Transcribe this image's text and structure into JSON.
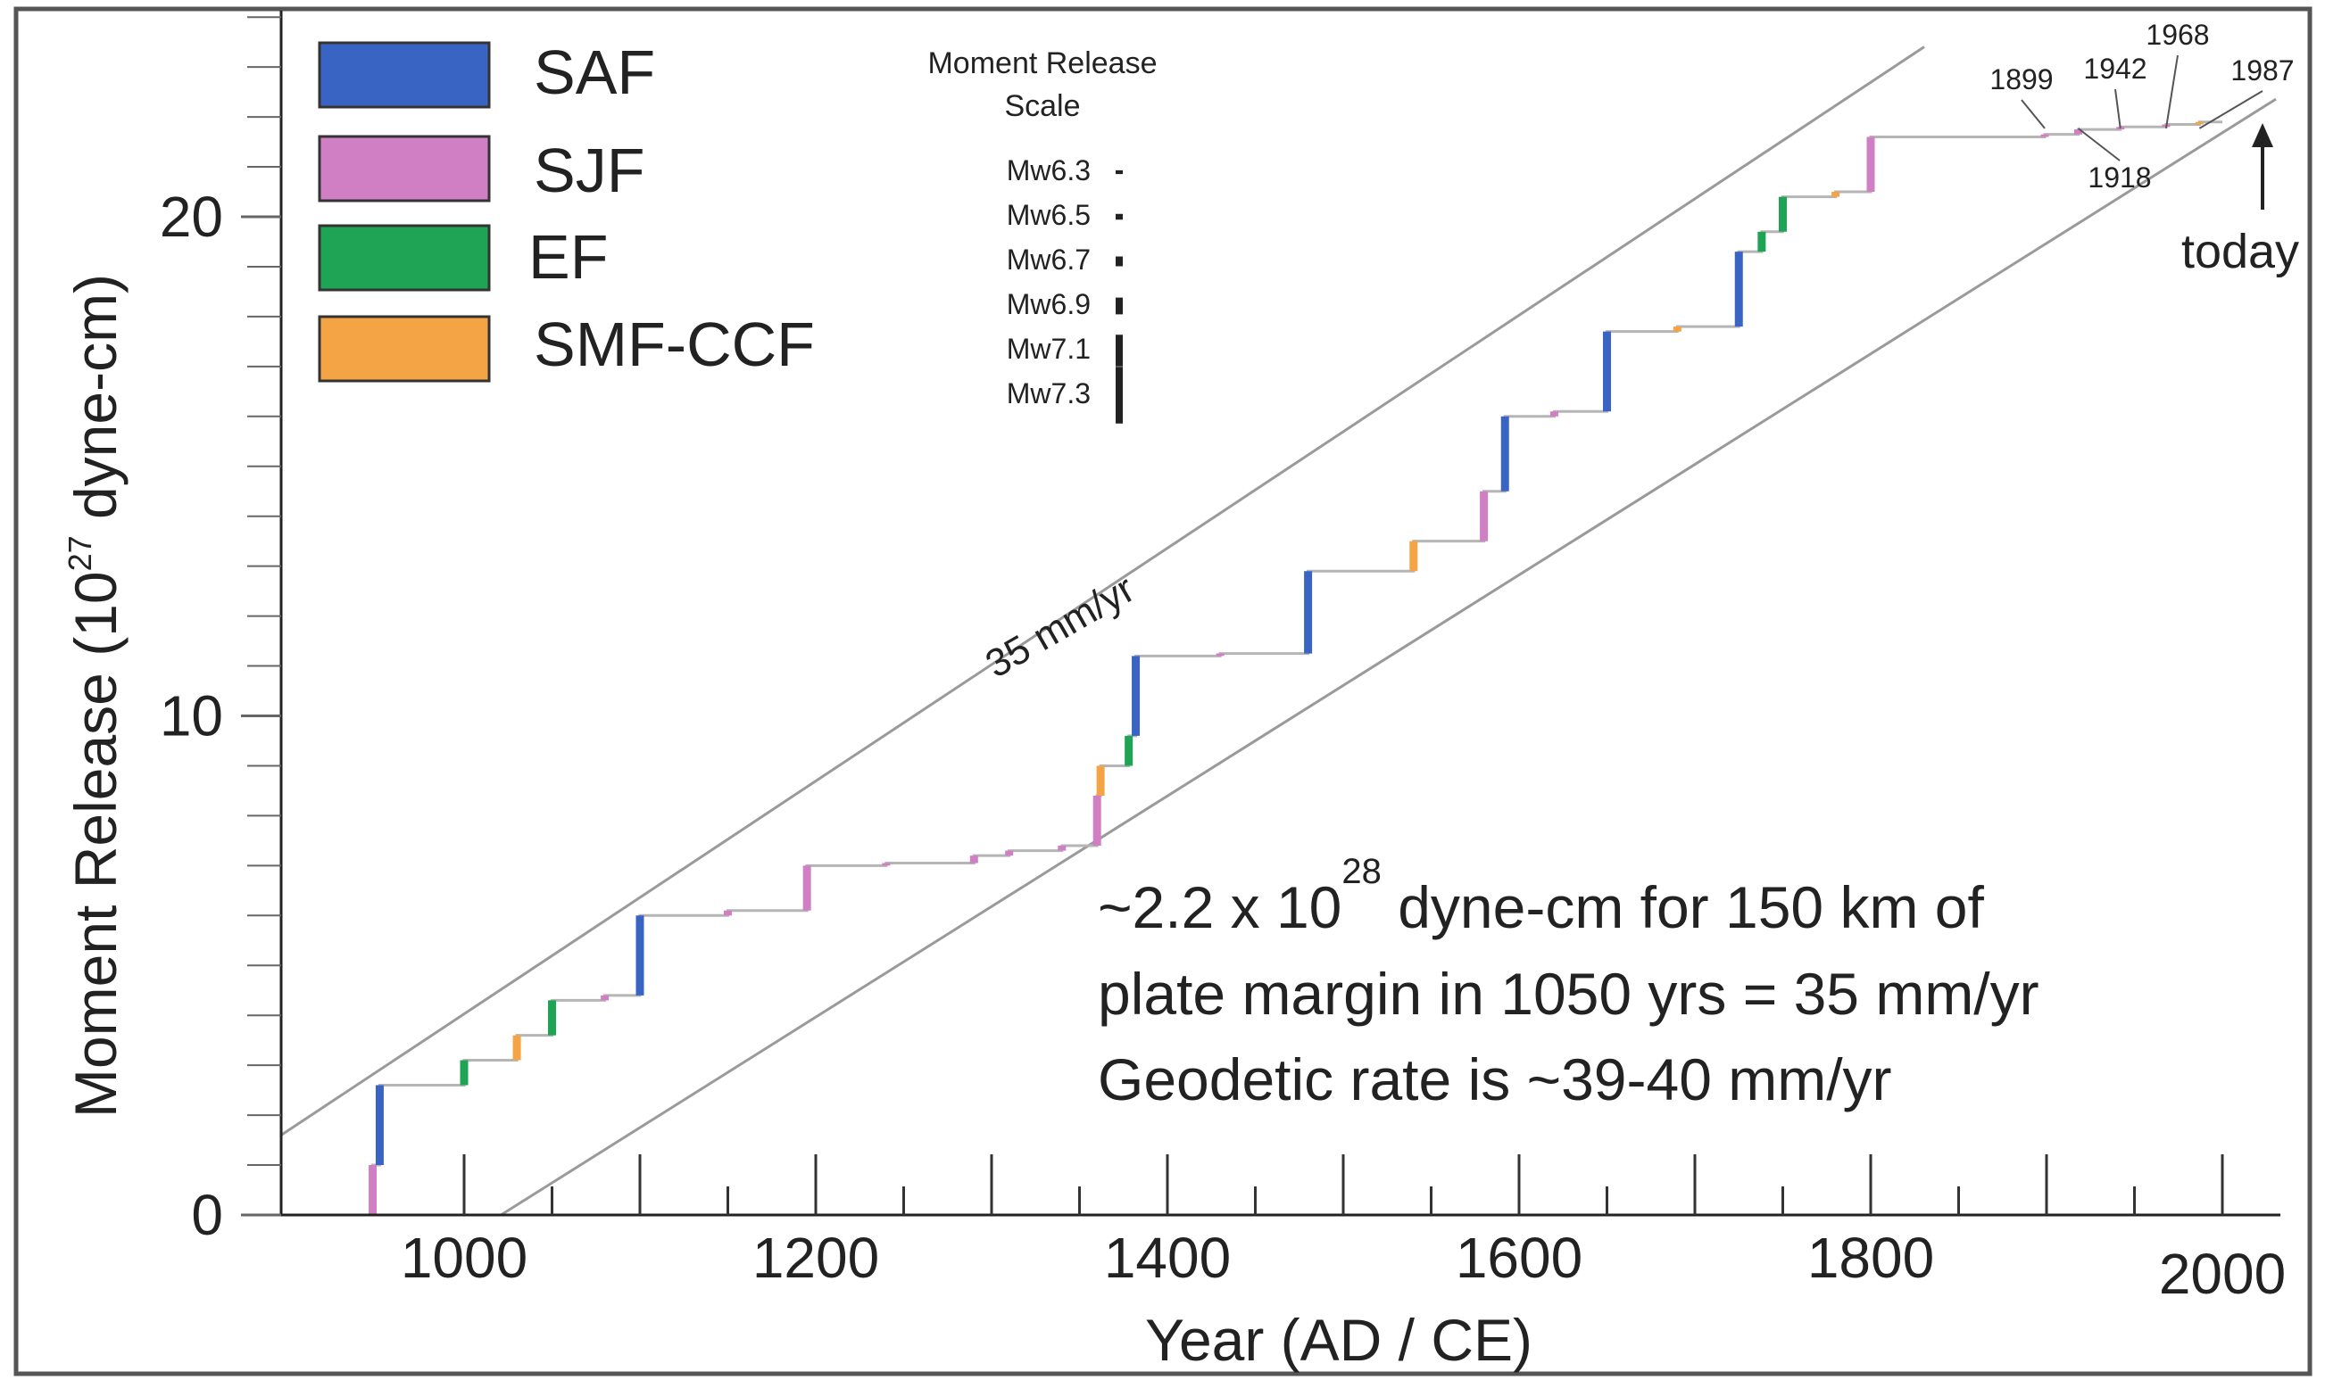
{
  "chart_data": {
    "type": "line",
    "xlabel": "Year (AD / CE)",
    "ylabel_main": "Moment Release (10",
    "ylabel_exp": "27",
    "ylabel_tail": " dyne-cm)",
    "xlim": [
      900,
      2000
    ],
    "ylim": [
      0,
      24
    ],
    "x_ticks": [
      1000,
      1200,
      1400,
      1600,
      1800,
      2000
    ],
    "y_ticks": [
      0,
      10,
      20
    ],
    "legend_position": "top-left",
    "legend": [
      {
        "name": "SAF",
        "color": "#3a64c4"
      },
      {
        "name": "SJF",
        "color": "#d17fc5"
      },
      {
        "name": "EF",
        "color": "#1fa354"
      },
      {
        "name": "SMF-CCF",
        "color": "#f5a445"
      }
    ],
    "scale_legend": {
      "title_line1": "Moment Release",
      "title_line2": "Scale",
      "items": [
        {
          "label": "Mw6.3",
          "moment": 0.04
        },
        {
          "label": "Mw6.5",
          "moment": 0.08
        },
        {
          "label": "Mw6.7",
          "moment": 0.16
        },
        {
          "label": "Mw6.9",
          "moment": 0.3
        },
        {
          "label": "Mw7.1",
          "moment": 0.6
        },
        {
          "label": "Mw7.3",
          "moment": 1.1
        }
      ]
    },
    "rate_lines": [
      {
        "x": [
          900,
          1800
        ],
        "y": [
          1.6,
          22.6
        ],
        "label": "35 mm/yr"
      },
      {
        "x": [
          1025,
          2000
        ],
        "y": [
          0,
          22.0
        ]
      }
    ],
    "events": [
      {
        "year": 948,
        "fault": "SJF",
        "y0": 0.0,
        "y1": 1.0
      },
      {
        "year": 952,
        "fault": "SAF",
        "y0": 1.0,
        "y1": 2.6
      },
      {
        "year": 1000,
        "fault": "EF",
        "y0": 2.6,
        "y1": 3.1
      },
      {
        "year": 1030,
        "fault": "SMF-CCF",
        "y0": 3.1,
        "y1": 3.6
      },
      {
        "year": 1050,
        "fault": "EF",
        "y0": 3.6,
        "y1": 4.3
      },
      {
        "year": 1080,
        "fault": "SJF",
        "y0": 4.3,
        "y1": 4.4
      },
      {
        "year": 1100,
        "fault": "SAF",
        "y0": 4.4,
        "y1": 6.0
      },
      {
        "year": 1150,
        "fault": "SJF",
        "y0": 6.0,
        "y1": 6.1
      },
      {
        "year": 1195,
        "fault": "SJF",
        "y0": 6.1,
        "y1": 7.0
      },
      {
        "year": 1240,
        "fault": "SJF",
        "y0": 7.0,
        "y1": 7.05
      },
      {
        "year": 1290,
        "fault": "SJF",
        "y0": 7.05,
        "y1": 7.2
      },
      {
        "year": 1310,
        "fault": "SJF",
        "y0": 7.2,
        "y1": 7.3
      },
      {
        "year": 1340,
        "fault": "SJF",
        "y0": 7.3,
        "y1": 7.4
      },
      {
        "year": 1360,
        "fault": "SJF",
        "y0": 7.4,
        "y1": 8.4
      },
      {
        "year": 1362,
        "fault": "SMF-CCF",
        "y0": 8.4,
        "y1": 9.0
      },
      {
        "year": 1378,
        "fault": "EF",
        "y0": 9.0,
        "y1": 9.6
      },
      {
        "year": 1382,
        "fault": "SAF",
        "y0": 9.6,
        "y1": 11.2
      },
      {
        "year": 1430,
        "fault": "SJF",
        "y0": 11.2,
        "y1": 11.25
      },
      {
        "year": 1480,
        "fault": "SAF",
        "y0": 11.25,
        "y1": 12.9
      },
      {
        "year": 1540,
        "fault": "SMF-CCF",
        "y0": 12.9,
        "y1": 13.5
      },
      {
        "year": 1580,
        "fault": "SJF",
        "y0": 13.5,
        "y1": 14.5
      },
      {
        "year": 1592,
        "fault": "SAF",
        "y0": 14.5,
        "y1": 16.0
      },
      {
        "year": 1620,
        "fault": "SJF",
        "y0": 16.0,
        "y1": 16.1
      },
      {
        "year": 1650,
        "fault": "SAF",
        "y0": 16.1,
        "y1": 17.7
      },
      {
        "year": 1690,
        "fault": "SMF-CCF",
        "y0": 17.7,
        "y1": 17.8
      },
      {
        "year": 1725,
        "fault": "SAF",
        "y0": 17.8,
        "y1": 19.3
      },
      {
        "year": 1738,
        "fault": "EF",
        "y0": 19.3,
        "y1": 19.7
      },
      {
        "year": 1750,
        "fault": "EF",
        "y0": 19.7,
        "y1": 20.4
      },
      {
        "year": 1780,
        "fault": "SMF-CCF",
        "y0": 20.4,
        "y1": 20.5
      },
      {
        "year": 1800,
        "fault": "SJF",
        "y0": 20.5,
        "y1": 21.6
      },
      {
        "year": 1899,
        "fault": "SJF",
        "y0": 21.6,
        "y1": 21.65
      },
      {
        "year": 1918,
        "fault": "SJF",
        "y0": 21.65,
        "y1": 21.75
      },
      {
        "year": 1942,
        "fault": "SJF",
        "y0": 21.75,
        "y1": 21.8
      },
      {
        "year": 1968,
        "fault": "SJF",
        "y0": 21.8,
        "y1": 21.85
      },
      {
        "year": 1987,
        "fault": "SMF-CCF",
        "y0": 21.85,
        "y1": 21.9
      }
    ],
    "cumulative_end_year": 2000,
    "year_labels": [
      {
        "text": "1899",
        "year": 1899
      },
      {
        "text": "1918",
        "year": 1918
      },
      {
        "text": "1942",
        "year": 1942
      },
      {
        "text": "1968",
        "year": 1968
      },
      {
        "text": "1987",
        "year": 1987
      }
    ],
    "today_label": "today",
    "annotation": {
      "line1_pre": "~2.2 x 10",
      "line1_exp": "28",
      "line1_post": " dyne-cm for 150 km of",
      "line2": "plate margin in 1050 yrs = 35 mm/yr",
      "line3": "Geodetic rate is ~39-40 mm/yr"
    }
  }
}
